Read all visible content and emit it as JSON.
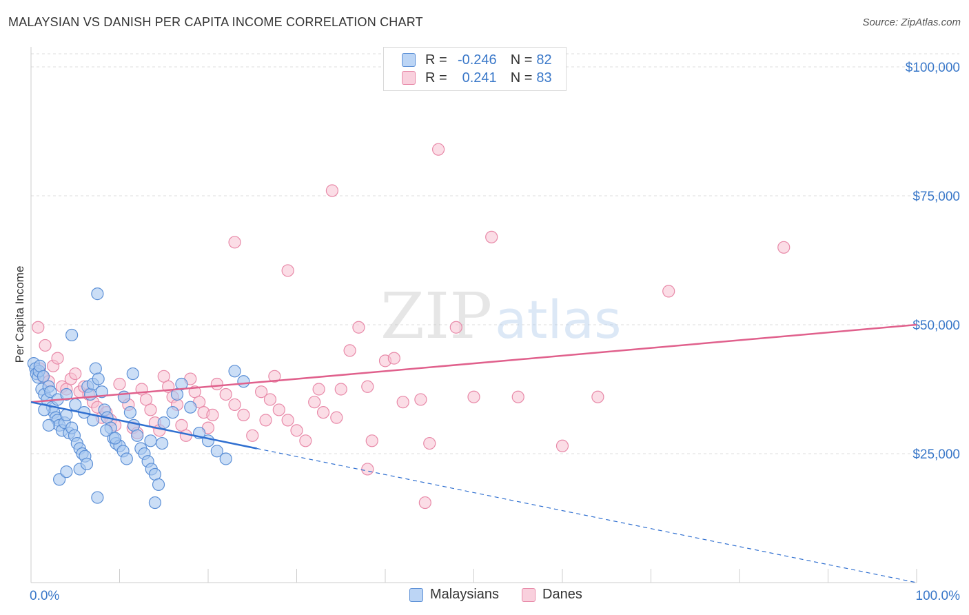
{
  "title": "MALAYSIAN VS DANISH PER CAPITA INCOME CORRELATION CHART",
  "source": "Source: ZipAtlas.com",
  "watermark": {
    "zip": "ZIP",
    "atlas": "atlas"
  },
  "legend": {
    "rows": [
      {
        "r_label": "R =",
        "r_value": "-0.246",
        "n_label": "N =",
        "n_value": "82"
      },
      {
        "r_label": "R =",
        "r_value": "0.241",
        "n_label": "N =",
        "n_value": "83"
      }
    ]
  },
  "bottom_legend": {
    "malaysians": "Malaysians",
    "danes": "Danes"
  },
  "colors": {
    "malaysians_fill": "#a9c8f0",
    "malaysians_stroke": "#5b8fd6",
    "malaysians_line": "#2f6fd0",
    "danes_fill": "#f7c1d2",
    "danes_stroke": "#e889a8",
    "danes_line": "#e0608c",
    "accent_text": "#3a78c9",
    "grid": "#dddddd"
  },
  "chart_data": {
    "type": "scatter",
    "title": "MALAYSIAN VS DANISH PER CAPITA INCOME CORRELATION CHART",
    "xlabel": "",
    "ylabel": "Per Capita Income",
    "xlim": [
      0,
      100
    ],
    "ylim": [
      0,
      105000
    ],
    "x_tick_labels": [
      "0.0%",
      "100.0%"
    ],
    "y_ticks": [
      25000,
      50000,
      75000,
      100000
    ],
    "y_tick_labels": [
      "$25,000",
      "$50,000",
      "$75,000",
      "$100,000"
    ],
    "grid": true,
    "legend_position": "top-center",
    "series": [
      {
        "name": "Malaysians",
        "r": -0.246,
        "n": 82,
        "trend": {
          "x0": 0,
          "y0": 35000,
          "x1": 25.5,
          "y1": 26000,
          "dashed_to_x": 100,
          "dashed_to_y": -1000
        },
        "points": [
          [
            0.3,
            42500
          ],
          [
            0.5,
            41500
          ],
          [
            0.6,
            40500
          ],
          [
            0.8,
            39800
          ],
          [
            0.9,
            41000
          ],
          [
            1.0,
            42000
          ],
          [
            1.2,
            37500
          ],
          [
            1.4,
            40000
          ],
          [
            1.5,
            36500
          ],
          [
            1.8,
            35500
          ],
          [
            2.0,
            38000
          ],
          [
            2.2,
            37000
          ],
          [
            2.4,
            34000
          ],
          [
            2.6,
            33000
          ],
          [
            2.8,
            32000
          ],
          [
            3.0,
            31500
          ],
          [
            3.2,
            30500
          ],
          [
            3.5,
            29500
          ],
          [
            3.8,
            31000
          ],
          [
            4.0,
            32500
          ],
          [
            4.3,
            29000
          ],
          [
            4.6,
            30000
          ],
          [
            4.9,
            28500
          ],
          [
            5.2,
            27000
          ],
          [
            5.5,
            26000
          ],
          [
            5.8,
            25000
          ],
          [
            6.1,
            24500
          ],
          [
            6.4,
            38000
          ],
          [
            6.7,
            36500
          ],
          [
            7.0,
            38500
          ],
          [
            7.3,
            41500
          ],
          [
            7.6,
            39500
          ],
          [
            8.0,
            37000
          ],
          [
            8.3,
            33500
          ],
          [
            8.6,
            32000
          ],
          [
            9.0,
            30000
          ],
          [
            9.3,
            28000
          ],
          [
            9.6,
            27000
          ],
          [
            10.0,
            26500
          ],
          [
            10.4,
            25500
          ],
          [
            10.8,
            24000
          ],
          [
            11.2,
            33000
          ],
          [
            11.6,
            30500
          ],
          [
            12.0,
            28500
          ],
          [
            12.4,
            26000
          ],
          [
            12.8,
            25000
          ],
          [
            13.2,
            23500
          ],
          [
            13.6,
            22000
          ],
          [
            14.0,
            21000
          ],
          [
            14.4,
            19000
          ],
          [
            4.6,
            48000
          ],
          [
            7.5,
            56000
          ],
          [
            11.5,
            40500
          ],
          [
            13.5,
            27500
          ],
          [
            14.0,
            15500
          ],
          [
            7.5,
            16500
          ],
          [
            3.2,
            20000
          ],
          [
            4.0,
            21500
          ],
          [
            5.5,
            22000
          ],
          [
            6.3,
            23000
          ],
          [
            15.0,
            31000
          ],
          [
            16.0,
            33000
          ],
          [
            17.0,
            38500
          ],
          [
            18.0,
            34000
          ],
          [
            19.0,
            29000
          ],
          [
            20.0,
            27500
          ],
          [
            21.0,
            25500
          ],
          [
            22.0,
            24000
          ],
          [
            23.0,
            41000
          ],
          [
            24.0,
            39000
          ],
          [
            2.0,
            30500
          ],
          [
            3.0,
            35500
          ],
          [
            4.0,
            36500
          ],
          [
            5.0,
            34500
          ],
          [
            6.0,
            33000
          ],
          [
            7.0,
            31500
          ],
          [
            8.5,
            29500
          ],
          [
            9.5,
            28000
          ],
          [
            10.5,
            36000
          ],
          [
            1.5,
            33500
          ],
          [
            16.5,
            36500
          ],
          [
            14.8,
            27000
          ]
        ]
      },
      {
        "name": "Danes",
        "r": 0.241,
        "n": 83,
        "trend": {
          "x0": 0,
          "y0": 35000,
          "x1": 100,
          "y1": 50000
        },
        "points": [
          [
            0.8,
            49500
          ],
          [
            1.0,
            41500
          ],
          [
            1.3,
            40000
          ],
          [
            1.6,
            46000
          ],
          [
            2.0,
            39000
          ],
          [
            2.5,
            42000
          ],
          [
            3.0,
            43500
          ],
          [
            3.5,
            38000
          ],
          [
            4.0,
            37500
          ],
          [
            4.5,
            39500
          ],
          [
            5.0,
            40500
          ],
          [
            5.5,
            37000
          ],
          [
            6.0,
            38000
          ],
          [
            6.5,
            36500
          ],
          [
            7.0,
            35000
          ],
          [
            7.5,
            34000
          ],
          [
            8.0,
            32000
          ],
          [
            8.5,
            33000
          ],
          [
            9.0,
            31500
          ],
          [
            9.5,
            30500
          ],
          [
            10.0,
            38500
          ],
          [
            10.5,
            36000
          ],
          [
            11.0,
            34500
          ],
          [
            11.5,
            30000
          ],
          [
            12.0,
            29000
          ],
          [
            12.5,
            37500
          ],
          [
            13.0,
            35500
          ],
          [
            13.5,
            33500
          ],
          [
            14.0,
            31000
          ],
          [
            14.5,
            29500
          ],
          [
            15.0,
            40000
          ],
          [
            15.5,
            38000
          ],
          [
            16.0,
            36000
          ],
          [
            16.5,
            34500
          ],
          [
            17.0,
            30500
          ],
          [
            17.5,
            28500
          ],
          [
            18.0,
            39500
          ],
          [
            18.5,
            37000
          ],
          [
            19.0,
            35000
          ],
          [
            19.5,
            33000
          ],
          [
            20.0,
            30000
          ],
          [
            21.0,
            38500
          ],
          [
            22.0,
            36500
          ],
          [
            23.0,
            34500
          ],
          [
            24.0,
            32500
          ],
          [
            25.0,
            28500
          ],
          [
            26.0,
            37000
          ],
          [
            27.0,
            35500
          ],
          [
            28.0,
            33500
          ],
          [
            29.0,
            31500
          ],
          [
            30.0,
            29500
          ],
          [
            31.0,
            27500
          ],
          [
            32.0,
            35000
          ],
          [
            33.0,
            33000
          ],
          [
            35.0,
            37500
          ],
          [
            36.0,
            45000
          ],
          [
            37.0,
            49500
          ],
          [
            38.0,
            38000
          ],
          [
            38.5,
            27500
          ],
          [
            40.0,
            43000
          ],
          [
            41.0,
            43500
          ],
          [
            44.0,
            35500
          ],
          [
            45.0,
            27000
          ],
          [
            48.0,
            49500
          ],
          [
            50.0,
            36000
          ],
          [
            52.0,
            67000
          ],
          [
            60.0,
            26500
          ],
          [
            64.0,
            36000
          ],
          [
            72.0,
            56500
          ],
          [
            85.0,
            65000
          ],
          [
            23.0,
            66000
          ],
          [
            29.0,
            60500
          ],
          [
            34.0,
            76000
          ],
          [
            46.0,
            84000
          ],
          [
            38.0,
            22000
          ],
          [
            44.5,
            15500
          ],
          [
            26.5,
            31500
          ],
          [
            20.5,
            32500
          ],
          [
            27.5,
            40000
          ],
          [
            32.5,
            37500
          ],
          [
            34.5,
            32000
          ],
          [
            42.0,
            35000
          ],
          [
            55.0,
            36000
          ]
        ]
      }
    ]
  }
}
